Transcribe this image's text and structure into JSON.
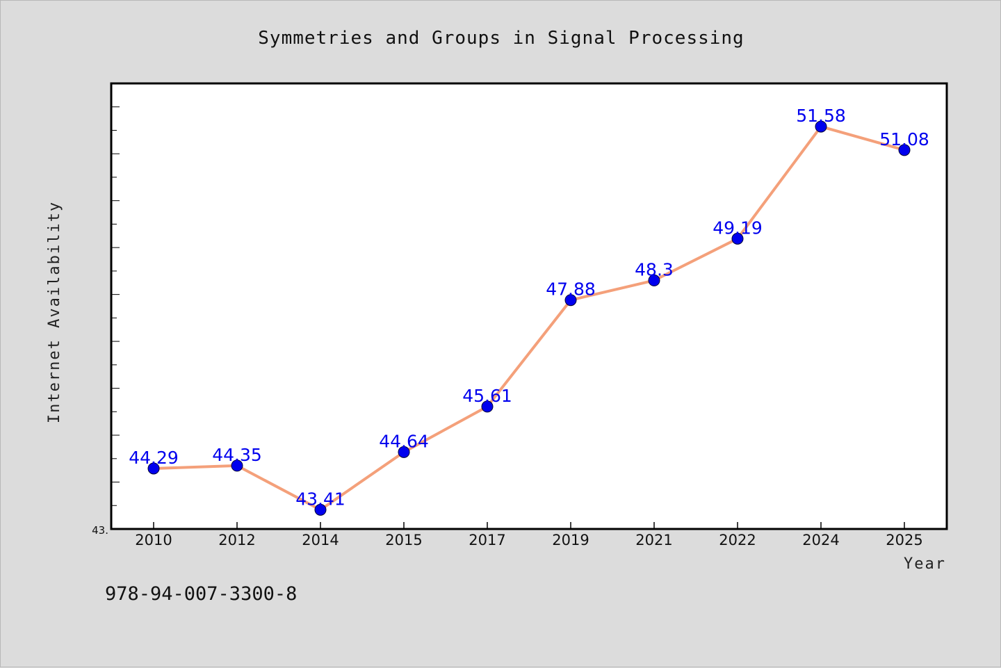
{
  "chart_data": {
    "type": "line",
    "title": "Symmetries and Groups in Signal Processing",
    "xlabel": "Year",
    "ylabel": "Internet Availability",
    "categories": [
      "2010",
      "2012",
      "2014",
      "2015",
      "2017",
      "2019",
      "2021",
      "2022",
      "2024",
      "2025"
    ],
    "values": [
      44.29,
      44.35,
      43.41,
      44.64,
      45.61,
      47.88,
      48.3,
      49.19,
      51.58,
      51.08
    ],
    "data_labels": [
      "44.29",
      "44.35",
      "43.41",
      "44.64",
      "45.61",
      "47.88",
      "48.3",
      "49.19",
      "51.58",
      "51.08"
    ],
    "ylim": [
      43.0,
      52.5
    ],
    "y_tick_labels": [
      "43."
    ],
    "grid": false,
    "legend": "none",
    "colors": {
      "line": "#f4a07a",
      "marker": "#0000ee",
      "labels": "#0000ee",
      "background": "#dcdcdc",
      "plot_area": "#ffffff"
    }
  },
  "footer": {
    "text": "978-94-007-3300-8"
  }
}
